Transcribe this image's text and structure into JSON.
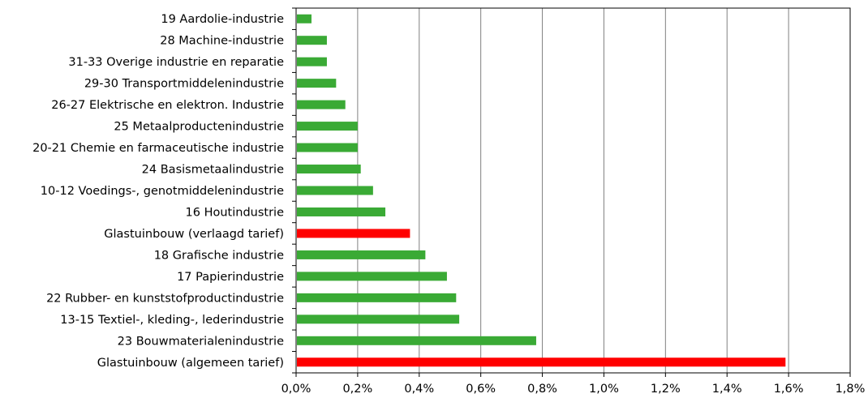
{
  "chart_data": {
    "type": "bar",
    "orientation": "horizontal",
    "title": "",
    "xlabel": "",
    "ylabel": "",
    "categories": [
      "19 Aardolie-industrie",
      "28 Machine-industrie",
      "31-33 Overige industrie en reparatie",
      "29-30 Transportmiddelenindustrie",
      "26-27 Elektrische en elektron. Industrie",
      "25 Metaalproductenindustrie",
      "20-21 Chemie en farmaceutische industrie",
      "24 Basismetaalindustrie",
      "10-12 Voedings-, genotmiddelenindustrie",
      "16 Houtindustrie",
      "Glastuinbouw (verlaagd tarief)",
      "18 Grafische industrie",
      "17 Papierindustrie",
      "22 Rubber- en kunststofproductindustrie",
      "13-15 Textiel-, kleding-, lederindustrie",
      "23 Bouwmaterialenindustrie",
      "Glastuinbouw (algemeen tarief)"
    ],
    "values": [
      0.05,
      0.1,
      0.1,
      0.13,
      0.16,
      0.2,
      0.2,
      0.21,
      0.25,
      0.29,
      0.37,
      0.42,
      0.49,
      0.52,
      0.53,
      0.78,
      1.59
    ],
    "highlight": [
      false,
      false,
      false,
      false,
      false,
      false,
      false,
      false,
      false,
      false,
      true,
      false,
      false,
      false,
      false,
      false,
      true
    ],
    "xlim": [
      0,
      1.8
    ],
    "xticks": [
      0,
      0.2,
      0.4,
      0.6,
      0.8,
      1.0,
      1.2,
      1.4,
      1.6,
      1.8
    ],
    "xtick_labels": [
      "0,0%",
      "0,2%",
      "0,4%",
      "0,6%",
      "0,8%",
      "1,0%",
      "1,2%",
      "1,4%",
      "1,6%",
      "1,8%"
    ],
    "grid": "vertical",
    "legend": "none"
  },
  "colors": {
    "bar": "#3aaa35",
    "highlight_bar": "#ff0000",
    "gridline": "#808080",
    "axis": "#000000",
    "background": "#ffffff"
  }
}
